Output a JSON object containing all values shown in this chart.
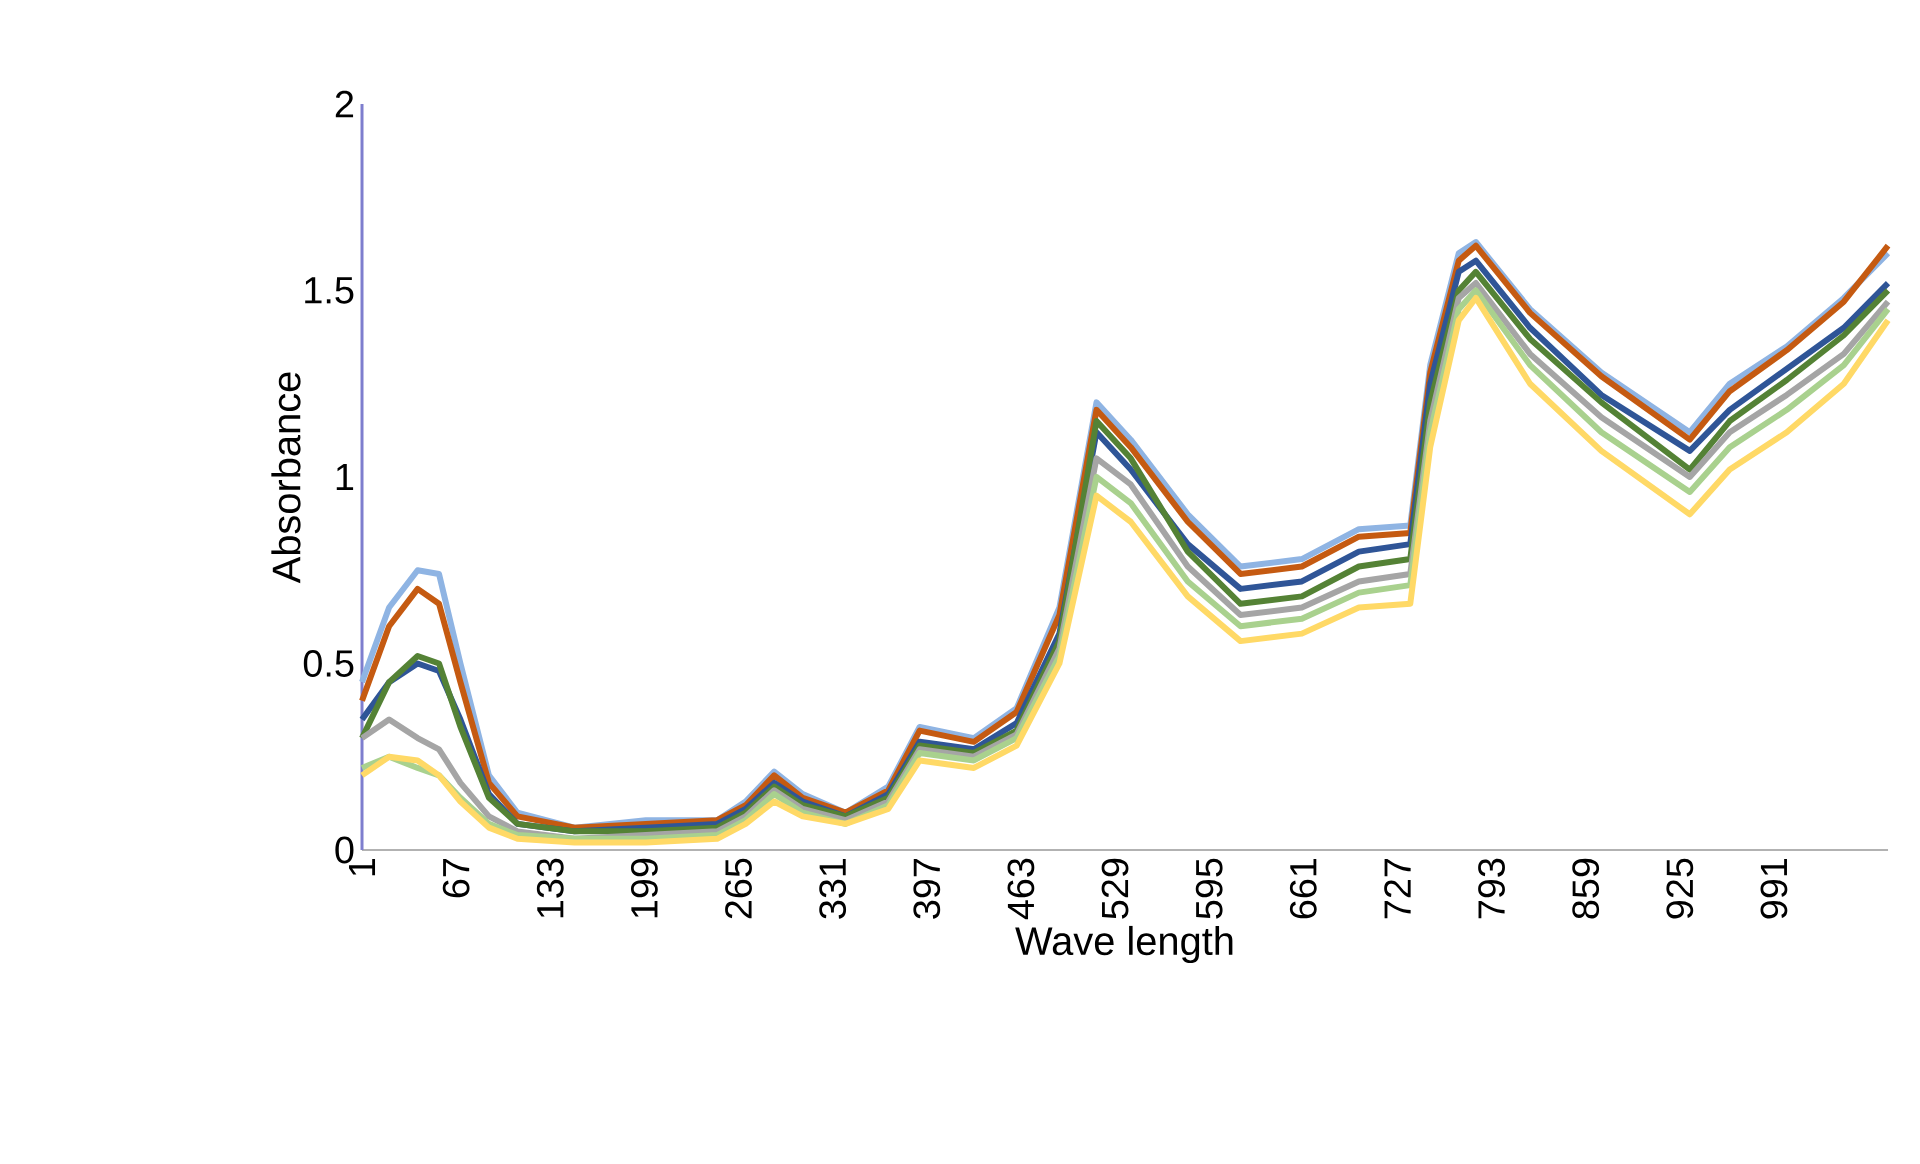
{
  "chart_data": {
    "type": "line",
    "xlabel": "Wave length",
    "ylabel": "Absorbance",
    "xlim": [
      1,
      1071
    ],
    "xticks": [
      1,
      67,
      133,
      199,
      265,
      331,
      397,
      463,
      529,
      595,
      661,
      727,
      793,
      859,
      925,
      991
    ],
    "ylim": [
      0,
      2
    ],
    "yticks": [
      0,
      0.5,
      1,
      1.5,
      2
    ],
    "grid": false,
    "x": [
      1,
      20,
      40,
      55,
      70,
      90,
      110,
      150,
      200,
      250,
      270,
      290,
      310,
      340,
      370,
      392,
      430,
      460,
      490,
      516,
      540,
      580,
      617,
      660,
      700,
      736,
      750,
      770,
      782,
      820,
      870,
      932,
      960,
      1000,
      1040,
      1071
    ],
    "series": [
      {
        "color": "#8fb4e3",
        "values": [
          0.45,
          0.65,
          0.75,
          0.74,
          0.5,
          0.2,
          0.1,
          0.06,
          0.08,
          0.08,
          0.13,
          0.21,
          0.15,
          0.1,
          0.17,
          0.33,
          0.3,
          0.38,
          0.65,
          1.2,
          1.1,
          0.9,
          0.76,
          0.78,
          0.86,
          0.87,
          1.3,
          1.6,
          1.63,
          1.45,
          1.28,
          1.12,
          1.25,
          1.35,
          1.48,
          1.6
        ]
      },
      {
        "color": "#c55a11",
        "values": [
          0.4,
          0.6,
          0.7,
          0.66,
          0.45,
          0.18,
          0.09,
          0.06,
          0.07,
          0.08,
          0.12,
          0.2,
          0.14,
          0.1,
          0.16,
          0.32,
          0.29,
          0.37,
          0.63,
          1.18,
          1.08,
          0.88,
          0.74,
          0.76,
          0.84,
          0.85,
          1.28,
          1.58,
          1.62,
          1.44,
          1.27,
          1.1,
          1.23,
          1.34,
          1.47,
          1.62
        ]
      },
      {
        "color": "#2f5597",
        "values": [
          0.35,
          0.45,
          0.5,
          0.48,
          0.35,
          0.15,
          0.07,
          0.05,
          0.06,
          0.07,
          0.11,
          0.18,
          0.13,
          0.09,
          0.15,
          0.29,
          0.27,
          0.34,
          0.58,
          1.12,
          1.02,
          0.82,
          0.7,
          0.72,
          0.8,
          0.82,
          1.25,
          1.55,
          1.58,
          1.4,
          1.22,
          1.07,
          1.18,
          1.29,
          1.4,
          1.52
        ]
      },
      {
        "color": "#548235",
        "values": [
          0.3,
          0.45,
          0.52,
          0.5,
          0.33,
          0.14,
          0.07,
          0.05,
          0.05,
          0.06,
          0.1,
          0.17,
          0.12,
          0.09,
          0.14,
          0.28,
          0.26,
          0.32,
          0.56,
          1.15,
          1.05,
          0.8,
          0.66,
          0.68,
          0.76,
          0.78,
          1.2,
          1.5,
          1.55,
          1.37,
          1.2,
          1.02,
          1.15,
          1.26,
          1.38,
          1.5
        ]
      },
      {
        "color": "#a5a5a5",
        "values": [
          0.3,
          0.35,
          0.3,
          0.27,
          0.18,
          0.09,
          0.05,
          0.03,
          0.04,
          0.05,
          0.09,
          0.16,
          0.11,
          0.08,
          0.13,
          0.27,
          0.25,
          0.31,
          0.54,
          1.05,
          0.98,
          0.76,
          0.63,
          0.65,
          0.72,
          0.74,
          1.15,
          1.48,
          1.52,
          1.33,
          1.16,
          1.0,
          1.12,
          1.22,
          1.33,
          1.47
        ]
      },
      {
        "color": "#a9d18e",
        "values": [
          0.22,
          0.25,
          0.22,
          0.2,
          0.14,
          0.07,
          0.04,
          0.03,
          0.03,
          0.04,
          0.08,
          0.15,
          0.1,
          0.07,
          0.12,
          0.26,
          0.24,
          0.3,
          0.52,
          1.0,
          0.93,
          0.72,
          0.6,
          0.62,
          0.69,
          0.71,
          1.12,
          1.45,
          1.5,
          1.3,
          1.12,
          0.96,
          1.08,
          1.18,
          1.3,
          1.45
        ]
      },
      {
        "color": "#ffd966",
        "values": [
          0.2,
          0.25,
          0.24,
          0.2,
          0.13,
          0.06,
          0.03,
          0.02,
          0.02,
          0.03,
          0.07,
          0.13,
          0.09,
          0.07,
          0.11,
          0.24,
          0.22,
          0.28,
          0.5,
          0.95,
          0.88,
          0.68,
          0.56,
          0.58,
          0.65,
          0.66,
          1.08,
          1.42,
          1.48,
          1.25,
          1.07,
          0.9,
          1.02,
          1.12,
          1.25,
          1.42
        ]
      }
    ]
  }
}
